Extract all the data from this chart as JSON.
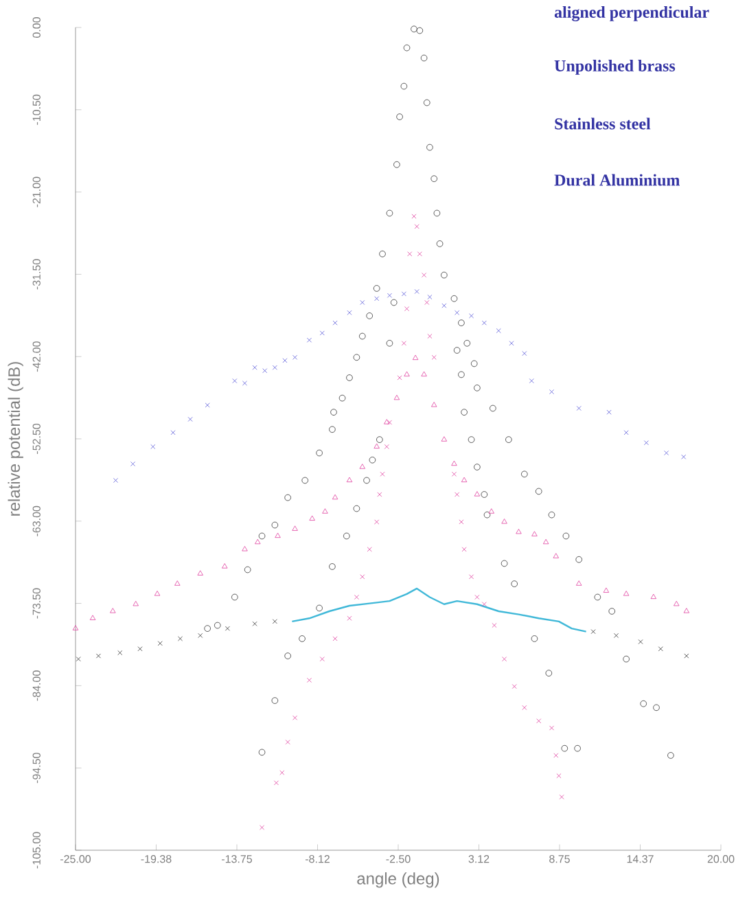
{
  "chart_data": {
    "type": "scatter",
    "xlabel": "angle (deg)",
    "ylabel": "relative potential (dB)",
    "annotations": [
      "aligned perpendicular",
      "Unpolished brass",
      "Stainless steel",
      "Dural Aluminium"
    ],
    "xlim": [
      -25,
      20
    ],
    "ylim": [
      -105,
      0
    ],
    "xticks": [
      {
        "value": -25,
        "label": "-25.00"
      },
      {
        "value": -19.375,
        "label": "-19.38"
      },
      {
        "value": -13.75,
        "label": "-13.75"
      },
      {
        "value": -8.125,
        "label": "-8.12"
      },
      {
        "value": -2.5,
        "label": "-2.50"
      },
      {
        "value": 3.125,
        "label": "3.12"
      },
      {
        "value": 8.75,
        "label": "8.75"
      },
      {
        "value": 14.375,
        "label": "14.37"
      },
      {
        "value": 20,
        "label": "20.00"
      }
    ],
    "yticks": [
      {
        "value": 0,
        "label": "0.00"
      },
      {
        "value": -10.5,
        "label": "-10.50"
      },
      {
        "value": -21,
        "label": "-21.00"
      },
      {
        "value": -31.5,
        "label": "-31.50"
      },
      {
        "value": -42,
        "label": "-42.00"
      },
      {
        "value": -52.5,
        "label": "-52.50"
      },
      {
        "value": -63,
        "label": "-63.00"
      },
      {
        "value": -73.5,
        "label": "-73.50"
      },
      {
        "value": -84,
        "label": "-84.00"
      },
      {
        "value": -94.5,
        "label": "-94.50"
      },
      {
        "value": -105,
        "label": "-105.00"
      }
    ],
    "series": [
      {
        "marker": "circle",
        "color": "#333333",
        "x": [
          -7.0,
          -6.4,
          -5.9,
          -5.4,
          -5.0,
          -4.5,
          -4.0,
          -3.6,
          -3.1,
          -2.6,
          -2.4,
          -2.1,
          -1.9,
          -1.4,
          -1.0,
          -0.7,
          -0.5,
          -0.3,
          0.0,
          0.2,
          0.4,
          0.7,
          1.4,
          1.9,
          2.3,
          2.8,
          3.0
        ],
        "values": [
          -49.1,
          -47.3,
          -44.7,
          -42.1,
          -39.4,
          -36.8,
          -33.3,
          -28.9,
          -23.7,
          -17.5,
          -11.4,
          -7.5,
          -2.6,
          -0.2,
          -0.4,
          -3.9,
          -9.6,
          -15.3,
          -19.3,
          -23.7,
          -27.6,
          -31.6,
          -34.6,
          -37.7,
          -40.3,
          -42.9,
          -46.0
        ]
      },
      {
        "marker": "circle",
        "color": "#333333",
        "x": [
          -12.0,
          -11.1,
          -10.2,
          -9.2,
          -8.0,
          -7.1,
          -6.1,
          -5.4,
          -4.7,
          -4.3,
          -3.8,
          -3.1,
          -2.8,
          1.6,
          1.9,
          2.1,
          2.6,
          3.0,
          3.5,
          3.7,
          4.9,
          5.6,
          7.0,
          8.0,
          9.1,
          10.0
        ],
        "values": [
          -92.5,
          -85.9,
          -80.2,
          -78.0,
          -74.1,
          -68.8,
          -64.9,
          -61.4,
          -57.8,
          -55.2,
          -52.6,
          -40.3,
          -35.1,
          -41.2,
          -44.3,
          -49.1,
          -52.6,
          -56.1,
          -59.6,
          -62.2,
          -68.4,
          -71.0,
          -78.0,
          -82.4,
          -92.0,
          -92.0
        ]
      },
      {
        "marker": "circle",
        "color": "#333333",
        "x": [
          -15.8,
          -15.1,
          -13.9,
          -13.0,
          -12.0,
          -11.1,
          -10.2,
          -9.0,
          -8.0,
          -7.1,
          4.1,
          5.2,
          6.3,
          7.3,
          8.2,
          9.2,
          10.1,
          11.4,
          12.4,
          13.4,
          14.6,
          15.5,
          16.5
        ],
        "values": [
          -76.7,
          -76.3,
          -72.7,
          -69.2,
          -64.9,
          -63.5,
          -60.0,
          -57.8,
          -54.3,
          -51.3,
          -48.6,
          -52.6,
          -57.0,
          -59.2,
          -62.2,
          -64.9,
          -67.9,
          -72.7,
          -74.5,
          -80.6,
          -86.3,
          -86.8,
          -92.9
        ]
      },
      {
        "marker": "cross",
        "color": "#5a5ad8",
        "x": [
          -22.2,
          -21.0,
          -19.6,
          -18.2,
          -17.0,
          -15.8,
          -13.9,
          -13.2,
          -12.5,
          -11.8,
          -11.1,
          -10.4,
          -9.7,
          -8.7,
          -7.8,
          -6.9,
          -5.9,
          -5.0,
          -4.0,
          -3.1,
          -2.1,
          -1.2,
          -0.3,
          0.7,
          1.6,
          2.6,
          3.5,
          4.5,
          5.4,
          6.3,
          6.8,
          8.2,
          10.1,
          12.2,
          13.4,
          14.8,
          16.2,
          17.4
        ],
        "values": [
          -57.8,
          -55.7,
          -53.5,
          -51.7,
          -50.0,
          -48.2,
          -45.1,
          -45.4,
          -43.4,
          -43.8,
          -43.4,
          -42.5,
          -42.1,
          -39.9,
          -39.0,
          -37.7,
          -36.4,
          -35.1,
          -34.6,
          -34.2,
          -34.0,
          -33.7,
          -34.4,
          -35.5,
          -36.4,
          -36.8,
          -37.7,
          -38.7,
          -40.3,
          -41.6,
          -45.1,
          -46.5,
          -48.6,
          -49.1,
          -51.7,
          -53.0,
          -54.3,
          -54.8
        ]
      },
      {
        "marker": "triangle",
        "color": "#e040a0",
        "x": [
          -25.0,
          -23.8,
          -22.4,
          -20.8,
          -19.3,
          -17.9,
          -16.3,
          -14.6,
          -13.2,
          -12.3,
          -10.9,
          -9.7,
          -8.5,
          -7.6,
          -6.9,
          -5.9,
          -5.0,
          -4.0,
          -3.3,
          -2.6,
          -1.9,
          -1.3,
          -0.7,
          0.0,
          0.7,
          1.4,
          2.1,
          3.0,
          4.0,
          4.9,
          5.9,
          7.0,
          7.8,
          8.5,
          10.1,
          12.0,
          13.4,
          15.3,
          16.9,
          17.6
        ],
        "values": [
          -76.7,
          -75.4,
          -74.5,
          -73.6,
          -72.3,
          -71.0,
          -69.7,
          -68.8,
          -66.6,
          -65.7,
          -64.9,
          -64.0,
          -62.7,
          -61.8,
          -60.0,
          -57.8,
          -56.1,
          -53.5,
          -50.4,
          -47.3,
          -44.3,
          -42.2,
          -44.3,
          -48.2,
          -52.6,
          -55.7,
          -57.8,
          -59.6,
          -61.8,
          -63.1,
          -64.4,
          -64.7,
          -65.7,
          -67.5,
          -71.0,
          -71.9,
          -72.3,
          -72.7,
          -73.6,
          -74.5
        ]
      },
      {
        "marker": "cross",
        "color": "#e040a0",
        "x": [
          -12.0,
          -11.0,
          -10.6,
          -10.2,
          -9.7,
          -8.7,
          -7.8,
          -6.9,
          -5.9,
          -5.4,
          -5.0,
          -4.5,
          -4.0,
          -3.8,
          -3.6,
          -3.3,
          -3.1,
          -2.4,
          -2.1,
          -1.9,
          -1.7,
          -1.4,
          -1.2,
          -1.0,
          -0.7,
          -0.5,
          -0.3,
          0.0,
          1.4,
          1.6,
          1.9,
          2.1,
          2.6,
          3.0,
          3.5,
          4.2,
          4.9,
          5.6,
          6.3,
          7.3,
          8.2,
          8.5,
          8.7,
          8.9
        ],
        "values": [
          -102.1,
          -96.4,
          -95.1,
          -91.2,
          -88.1,
          -83.3,
          -80.6,
          -78.0,
          -75.4,
          -72.7,
          -70.1,
          -66.6,
          -63.1,
          -59.6,
          -57.0,
          -53.5,
          -50.4,
          -44.7,
          -40.3,
          -35.9,
          -28.9,
          -24.1,
          -25.4,
          -28.9,
          -31.6,
          -35.1,
          -39.4,
          -42.1,
          -57.0,
          -59.6,
          -63.1,
          -66.6,
          -70.1,
          -72.7,
          -73.6,
          -76.3,
          -80.6,
          -84.1,
          -86.8,
          -88.5,
          -89.4,
          -92.9,
          -95.5,
          -98.2
        ]
      },
      {
        "type": "line",
        "marker": "none",
        "color": "#40b8d8",
        "x": [
          -9.9,
          -8.7,
          -7.3,
          -5.9,
          -4.5,
          -3.1,
          -1.9,
          -1.2,
          -0.3,
          0.7,
          1.6,
          3.0,
          4.5,
          5.9,
          7.3,
          8.7,
          9.6,
          10.6
        ],
        "values": [
          -75.8,
          -75.4,
          -74.5,
          -73.8,
          -73.5,
          -73.2,
          -72.3,
          -71.6,
          -72.7,
          -73.6,
          -73.2,
          -73.6,
          -74.5,
          -74.9,
          -75.4,
          -75.8,
          -76.7,
          -77.1
        ]
      },
      {
        "marker": "cross",
        "color": "#333333",
        "x": [
          -24.8,
          -23.4,
          -21.9,
          -20.5,
          -19.1,
          -17.7,
          -16.3,
          -14.4,
          -12.5,
          -11.1,
          11.1,
          12.7,
          14.4,
          15.8,
          17.6
        ],
        "values": [
          -80.6,
          -80.2,
          -79.8,
          -79.3,
          -78.6,
          -78.0,
          -77.6,
          -76.7,
          -76.1,
          -75.8,
          -77.1,
          -77.6,
          -78.4,
          -79.3,
          -80.2
        ]
      }
    ]
  }
}
